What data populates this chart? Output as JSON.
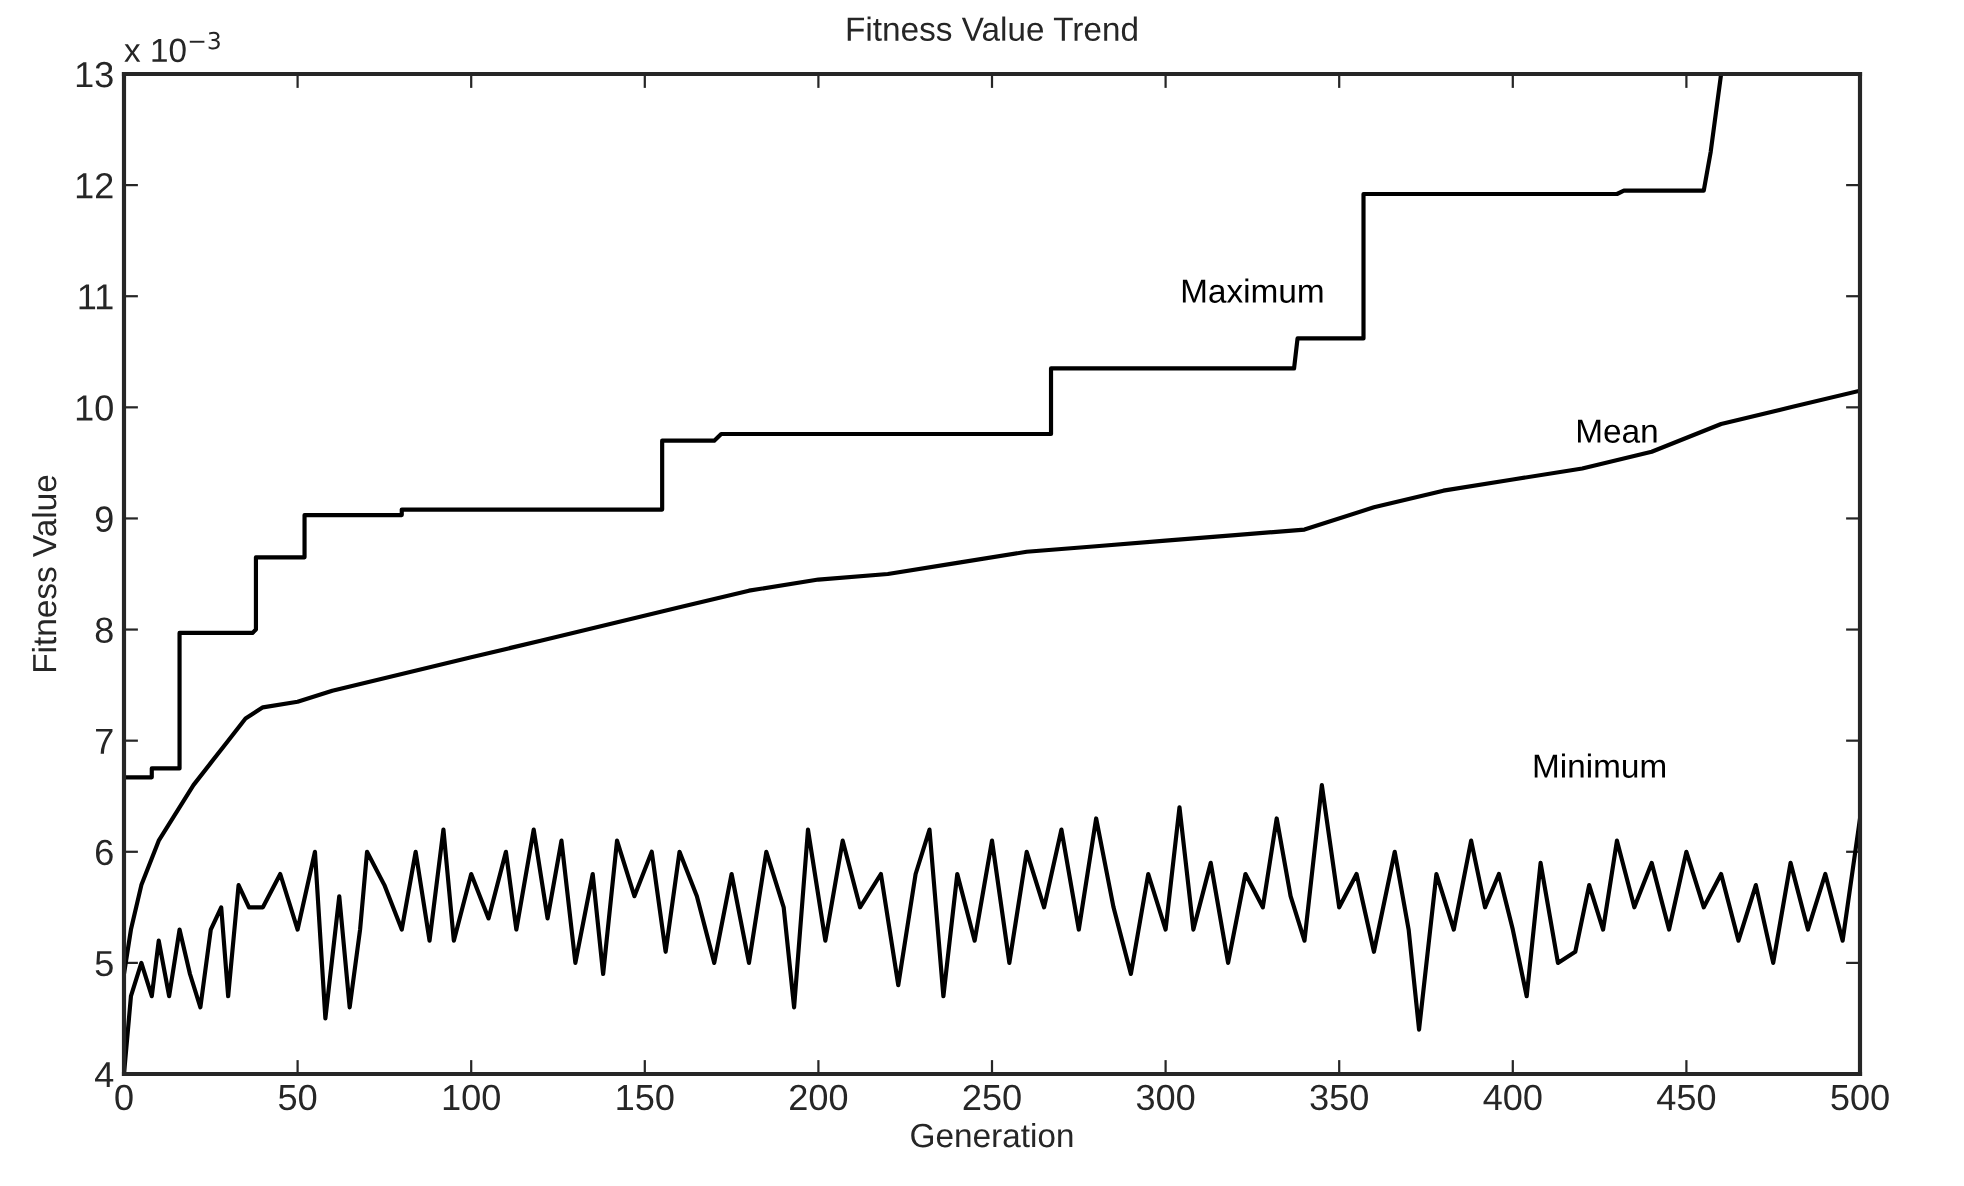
{
  "chart_data": {
    "type": "line",
    "title": "Fitness Value Trend",
    "xlabel": "Generation",
    "ylabel": "Fitness Value",
    "annotations": [
      "x 10$^{−3}$"
    ],
    "xlim": [
      0,
      500
    ],
    "xticks": [
      0,
      50,
      100,
      150,
      200,
      250,
      300,
      350,
      400,
      450,
      500
    ],
    "ylim": [
      4,
      13
    ],
    "yticks": [
      4,
      5,
      6,
      7,
      8,
      9,
      10,
      11,
      12,
      13
    ],
    "grid": false,
    "legend": false,
    "marker": "none",
    "line_style": "solid",
    "series": [
      {
        "name": "Maximum",
        "color": "#000000",
        "x": [
          0,
          8,
          8,
          16,
          16,
          37,
          38,
          38,
          52,
          52,
          80,
          80,
          155,
          155,
          170,
          172,
          267,
          267,
          337,
          338,
          357,
          357,
          430,
          432,
          455,
          457,
          460
        ],
        "values": [
          6.67,
          6.67,
          6.75,
          6.75,
          7.97,
          7.97,
          8.0,
          8.65,
          8.65,
          9.03,
          9.03,
          9.08,
          9.08,
          9.7,
          9.7,
          9.76,
          9.76,
          10.35,
          10.35,
          10.62,
          10.62,
          11.92,
          11.92,
          11.95,
          11.95,
          12.3,
          13
        ]
      },
      {
        "name": "Mean",
        "color": "#000000",
        "x": [
          0,
          2,
          5,
          10,
          15,
          20,
          25,
          30,
          35,
          40,
          50,
          60,
          80,
          100,
          120,
          140,
          160,
          180,
          200,
          220,
          240,
          260,
          280,
          300,
          320,
          340,
          360,
          380,
          400,
          420,
          440,
          460,
          480,
          500
        ],
        "values": [
          4.9,
          5.3,
          5.7,
          6.1,
          6.35,
          6.6,
          6.8,
          7.0,
          7.2,
          7.3,
          7.35,
          7.45,
          7.6,
          7.75,
          7.9,
          8.05,
          8.2,
          8.35,
          8.45,
          8.5,
          8.6,
          8.7,
          8.75,
          8.8,
          8.85,
          8.9,
          9.1,
          9.25,
          9.35,
          9.45,
          9.6,
          9.85,
          10.0,
          10.15
        ]
      },
      {
        "name": "Minimum",
        "color": "#000000",
        "x": [
          0,
          2,
          5,
          8,
          10,
          13,
          16,
          19,
          22,
          25,
          28,
          30,
          33,
          36,
          40,
          45,
          50,
          55,
          58,
          62,
          65,
          68,
          70,
          75,
          80,
          84,
          88,
          92,
          95,
          100,
          105,
          110,
          113,
          118,
          122,
          126,
          130,
          135,
          138,
          142,
          147,
          152,
          156,
          160,
          165,
          170,
          175,
          180,
          185,
          190,
          193,
          197,
          202,
          207,
          212,
          218,
          223,
          228,
          232,
          236,
          240,
          245,
          250,
          255,
          260,
          265,
          270,
          275,
          280,
          285,
          290,
          295,
          300,
          304,
          308,
          313,
          318,
          323,
          328,
          332,
          336,
          340,
          345,
          350,
          355,
          360,
          366,
          370,
          373,
          378,
          383,
          388,
          392,
          396,
          400,
          404,
          408,
          413,
          418,
          422,
          426,
          430,
          435,
          440,
          445,
          450,
          455,
          460,
          465,
          470,
          475,
          480,
          485,
          490,
          495,
          500
        ],
        "values": [
          4.0,
          4.7,
          5.0,
          4.7,
          5.2,
          4.7,
          5.3,
          4.9,
          4.6,
          5.3,
          5.5,
          4.7,
          5.7,
          5.5,
          5.5,
          5.8,
          5.3,
          6.0,
          4.5,
          5.6,
          4.6,
          5.3,
          6.0,
          5.7,
          5.3,
          6.0,
          5.2,
          6.2,
          5.2,
          5.8,
          5.4,
          6.0,
          5.3,
          6.2,
          5.4,
          6.1,
          5.0,
          5.8,
          4.9,
          6.1,
          5.6,
          6.0,
          5.1,
          6.0,
          5.6,
          5.0,
          5.8,
          5.0,
          6.0,
          5.5,
          4.6,
          6.2,
          5.2,
          6.1,
          5.5,
          5.8,
          4.8,
          5.8,
          6.2,
          4.7,
          5.8,
          5.2,
          6.1,
          5.0,
          6.0,
          5.5,
          6.2,
          5.3,
          6.3,
          5.5,
          4.9,
          5.8,
          5.3,
          6.4,
          5.3,
          5.9,
          5.0,
          5.8,
          5.5,
          6.3,
          5.6,
          5.2,
          6.6,
          5.5,
          5.8,
          5.1,
          6.0,
          5.3,
          4.4,
          5.8,
          5.3,
          6.1,
          5.5,
          5.8,
          5.3,
          4.7,
          5.9,
          5.0,
          5.1,
          5.7,
          5.3,
          6.1,
          5.5,
          5.9,
          5.3,
          6.0,
          5.5,
          5.8,
          5.2,
          5.7,
          5.0,
          5.9,
          5.3,
          5.8,
          5.2,
          6.3
        ]
      }
    ]
  }
}
